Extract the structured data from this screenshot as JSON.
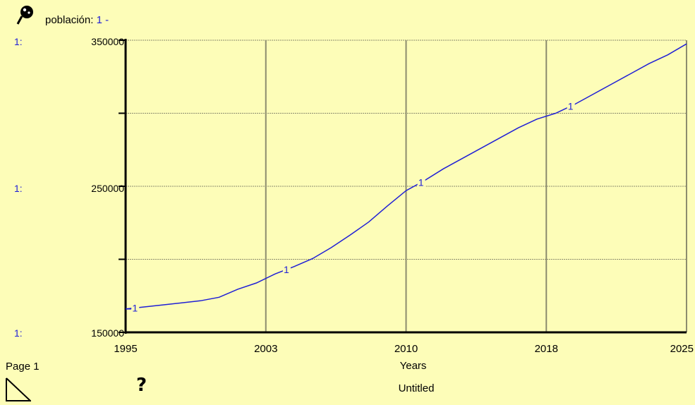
{
  "legend": {
    "variable": "población:",
    "series_id": "1 -"
  },
  "axis_prefix": "1:",
  "page_label": "Page 1",
  "help_symbol": "?",
  "title": "Untitled",
  "colors": {
    "background": "#fdfdb8",
    "series": "#1f1fd6",
    "grid": "#8c8c6e",
    "axis": "#000000"
  },
  "chart_data": {
    "type": "line",
    "title": "Untitled",
    "xlabel": "Years",
    "ylabel": "",
    "xlim": [
      1995,
      2025
    ],
    "ylim": [
      150000,
      350000
    ],
    "x_ticks": [
      "1995",
      "2003",
      "2010",
      "2018",
      "2025"
    ],
    "y_ticks": [
      "350000",
      "250000",
      "150000"
    ],
    "grid": true,
    "series": [
      {
        "name": "población",
        "marker_label": "1",
        "x": [
          1995,
          1997,
          1999,
          2000,
          2001,
          2002,
          2003,
          2004,
          2005,
          2006,
          2007,
          2008,
          2009,
          2010,
          2011,
          2012,
          2013,
          2014,
          2015,
          2016,
          2017,
          2018,
          2019,
          2020,
          2021,
          2022,
          2023,
          2024,
          2025
        ],
        "values": [
          166000,
          168800,
          171600,
          174000,
          179500,
          183800,
          190000,
          195000,
          200500,
          208000,
          216500,
          225500,
          236500,
          247000,
          254000,
          262000,
          269000,
          276000,
          283000,
          290000,
          296000,
          300000,
          306000,
          313000,
          320000,
          327000,
          334000,
          340000,
          347500
        ]
      }
    ]
  }
}
